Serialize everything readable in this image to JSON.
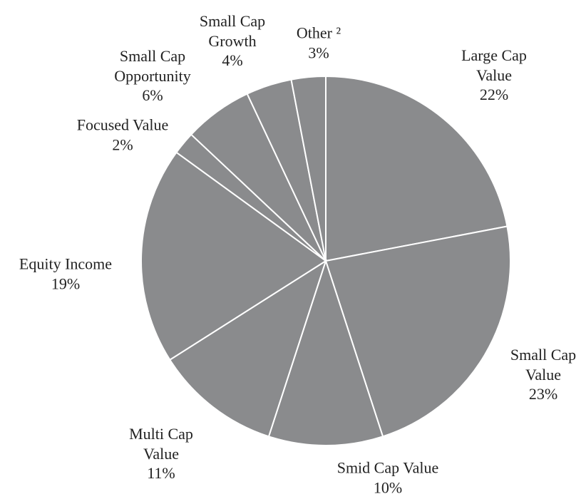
{
  "chart_data": {
    "type": "pie",
    "categories": [
      "Large Cap Value",
      "Small Cap Value",
      "Smid Cap Value",
      "Multi Cap Value",
      "Equity Income",
      "Focused Value",
      "Small Cap Opportunity",
      "Small Cap Growth",
      "Other ²"
    ],
    "values": [
      22,
      23,
      10,
      11,
      19,
      2,
      6,
      4,
      3
    ],
    "value_labels": [
      "22%",
      "23%",
      "10%",
      "11%",
      "19%",
      "2%",
      "6%",
      "4%",
      "3%"
    ],
    "color": "#8a8b8d"
  }
}
